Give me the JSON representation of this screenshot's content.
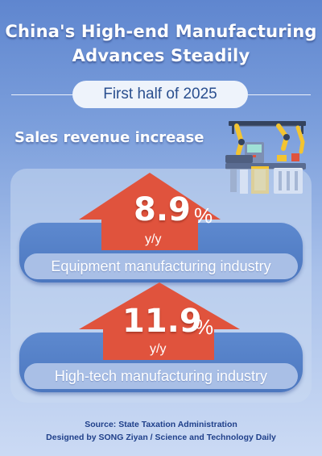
{
  "header": {
    "title_line1": "China's High-end Manufacturing",
    "title_line2": "Advances Steadily",
    "period": "First half of 2025"
  },
  "section": {
    "subtitle": "Sales revenue increase"
  },
  "metrics": [
    {
      "value": "8.9",
      "unit": "%",
      "change_label": "y/y",
      "label": "Equipment manufacturing industry"
    },
    {
      "value": "11.9",
      "unit": "%",
      "change_label": "y/y",
      "label": "High-tech manufacturing industry"
    }
  ],
  "footer": {
    "source": "Source: State Taxation Administration",
    "credit": "Designed by SONG Ziyan / Science and Technology Daily"
  },
  "colors": {
    "arrow": "#e0533d",
    "band": "#4f7bc2",
    "title_text": "#ffffff",
    "footer_text": "#20408a"
  },
  "icons": [
    "factory-robot-arm-illustration",
    "up-arrow-icon"
  ]
}
